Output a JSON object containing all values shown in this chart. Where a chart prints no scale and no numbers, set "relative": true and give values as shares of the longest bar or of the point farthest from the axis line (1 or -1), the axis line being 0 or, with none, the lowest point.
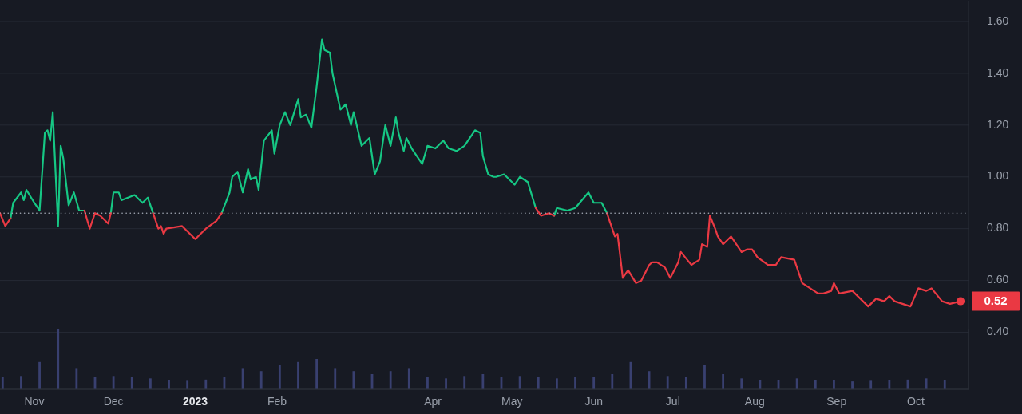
{
  "chart_data": [
    {
      "type": "line",
      "x": [
        "2022-10-19",
        "2022-10-21",
        "2022-10-23",
        "2022-10-24",
        "2022-10-27",
        "2022-10-28",
        "2022-10-29",
        "2022-11-01",
        "2022-11-03",
        "2022-11-05",
        "2022-11-06",
        "2022-11-07",
        "2022-11-08",
        "2022-11-10",
        "2022-11-11",
        "2022-11-12",
        "2022-11-14",
        "2022-11-16",
        "2022-11-18",
        "2022-11-20",
        "2022-11-22",
        "2022-11-24",
        "2022-11-26",
        "2022-11-29",
        "2022-11-30",
        "2022-12-01",
        "2022-12-03",
        "2022-12-04",
        "2022-12-09",
        "2022-12-12",
        "2022-12-14",
        "2022-12-16",
        "2022-12-18",
        "2022-12-19",
        "2022-12-20",
        "2022-12-21",
        "2022-12-27",
        "2023-01-01",
        "2023-01-05",
        "2023-01-09",
        "2023-01-11",
        "2023-01-14",
        "2023-01-15",
        "2023-01-17",
        "2023-01-19",
        "2023-01-21",
        "2023-01-22",
        "2023-01-24",
        "2023-01-25",
        "2023-01-27",
        "2023-01-30",
        "2023-01-31",
        "2023-02-02",
        "2023-02-04",
        "2023-02-06",
        "2023-02-09",
        "2023-02-10",
        "2023-02-12",
        "2023-02-14",
        "2023-02-16",
        "2023-02-18",
        "2023-02-19",
        "2023-02-21",
        "2023-02-22",
        "2023-02-25",
        "2023-02-27",
        "2023-03-01",
        "2023-03-02",
        "2023-03-05",
        "2023-03-08",
        "2023-03-10",
        "2023-03-12",
        "2023-03-14",
        "2023-03-16",
        "2023-03-18",
        "2023-03-19",
        "2023-03-21",
        "2023-03-22",
        "2023-03-24",
        "2023-03-26",
        "2023-03-28",
        "2023-03-30",
        "2023-04-02",
        "2023-04-05",
        "2023-04-07",
        "2023-04-10",
        "2023-04-13",
        "2023-04-17",
        "2023-04-19",
        "2023-04-20",
        "2023-04-22",
        "2023-04-24",
        "2023-04-25",
        "2023-04-28",
        "2023-05-02",
        "2023-05-04",
        "2023-05-07",
        "2023-05-10",
        "2023-05-12",
        "2023-05-15",
        "2023-05-17",
        "2023-05-18",
        "2023-05-22",
        "2023-05-25",
        "2023-05-30",
        "2023-06-01",
        "2023-06-04",
        "2023-06-06",
        "2023-06-09",
        "2023-06-10",
        "2023-06-12",
        "2023-06-14",
        "2023-06-17",
        "2023-06-19",
        "2023-06-22",
        "2023-06-23",
        "2023-06-25",
        "2023-06-28",
        "2023-06-30",
        "2023-07-03",
        "2023-07-04",
        "2023-07-08",
        "2023-07-11",
        "2023-07-12",
        "2023-07-14",
        "2023-07-15",
        "2023-07-17",
        "2023-07-18",
        "2023-07-20",
        "2023-07-23",
        "2023-07-25",
        "2023-07-27",
        "2023-07-29",
        "2023-07-31",
        "2023-08-02",
        "2023-08-06",
        "2023-08-09",
        "2023-08-11",
        "2023-08-16",
        "2023-08-19",
        "2023-08-22",
        "2023-08-25",
        "2023-08-27",
        "2023-08-30",
        "2023-08-31",
        "2023-09-02",
        "2023-09-07",
        "2023-09-13",
        "2023-09-16",
        "2023-09-19",
        "2023-09-21",
        "2023-09-23",
        "2023-09-29",
        "2023-10-02",
        "2023-10-05",
        "2023-10-07",
        "2023-10-11",
        "2023-10-14",
        "2023-10-18"
      ],
      "series": [
        {
          "color": "#16c784",
          "values": [
            null,
            null,
            0.84,
            0.9,
            0.94,
            0.91,
            0.95,
            0.9,
            0.87,
            1.17,
            1.18,
            1.14,
            1.25,
            0.81,
            1.12,
            1.07,
            0.89,
            0.94,
            0.87,
            0.87,
            null,
            null,
            null,
            null,
            0.86,
            0.94,
            0.94,
            0.91,
            0.93,
            0.9,
            0.92,
            0.86,
            null,
            null,
            null,
            null,
            null,
            null,
            null,
            null,
            0.86,
            0.94,
            1.0,
            1.02,
            0.94,
            1.03,
            0.99,
            1.0,
            0.95,
            1.14,
            1.18,
            1.09,
            1.2,
            1.25,
            1.2,
            1.3,
            1.23,
            1.24,
            1.19,
            1.35,
            1.53,
            1.49,
            1.48,
            1.4,
            1.26,
            1.28,
            1.2,
            1.25,
            1.12,
            1.15,
            1.01,
            1.06,
            1.2,
            1.12,
            1.23,
            1.17,
            1.1,
            1.15,
            1.11,
            1.08,
            1.05,
            1.12,
            1.11,
            1.14,
            1.11,
            1.1,
            1.12,
            1.18,
            1.17,
            1.08,
            1.01,
            1.0,
            1.0,
            1.01,
            0.97,
            1.0,
            0.98,
            0.88,
            null,
            null,
            0.85,
            0.88,
            0.87,
            0.88,
            0.94,
            0.9,
            0.9,
            0.86,
            null,
            null,
            null,
            null,
            null,
            null,
            null,
            null,
            null,
            null,
            null,
            null,
            null,
            null,
            null,
            null,
            null,
            null,
            null,
            null,
            null,
            null,
            null,
            null,
            null,
            null,
            null,
            null,
            null,
            null,
            null,
            null,
            null,
            null,
            null,
            null,
            null,
            null,
            null,
            null,
            null,
            null,
            null,
            null,
            null,
            null,
            null,
            null,
            null,
            null,
            null
          ]
        },
        {
          "color": "#ea3943",
          "values": [
            0.86,
            0.81,
            0.84,
            null,
            null,
            null,
            null,
            null,
            null,
            null,
            null,
            null,
            null,
            null,
            null,
            null,
            null,
            null,
            null,
            0.87,
            0.8,
            0.86,
            0.85,
            0.82,
            0.86,
            null,
            null,
            null,
            null,
            null,
            null,
            0.86,
            0.8,
            0.81,
            0.78,
            0.8,
            0.81,
            0.76,
            0.8,
            0.83,
            0.86,
            null,
            null,
            null,
            null,
            null,
            null,
            null,
            null,
            null,
            null,
            null,
            null,
            null,
            null,
            null,
            null,
            null,
            null,
            null,
            null,
            null,
            null,
            null,
            null,
            null,
            null,
            null,
            null,
            null,
            null,
            null,
            null,
            null,
            null,
            null,
            null,
            null,
            null,
            null,
            null,
            null,
            null,
            null,
            null,
            null,
            null,
            null,
            null,
            null,
            null,
            null,
            null,
            null,
            null,
            null,
            null,
            0.88,
            0.85,
            0.86,
            0.85,
            null,
            null,
            null,
            null,
            null,
            null,
            0.86,
            0.77,
            0.78,
            0.61,
            0.64,
            0.59,
            0.6,
            0.66,
            0.67,
            0.67,
            0.65,
            0.61,
            0.67,
            0.71,
            0.66,
            0.68,
            0.74,
            0.73,
            0.85,
            0.8,
            0.77,
            0.74,
            0.77,
            0.74,
            0.71,
            0.72,
            0.72,
            0.69,
            0.66,
            0.66,
            0.69,
            0.68,
            0.59,
            0.57,
            0.55,
            0.55,
            0.56,
            0.59,
            0.55,
            0.56,
            0.5,
            0.53,
            0.52,
            0.54,
            0.52,
            0.5,
            0.57,
            0.56,
            0.57,
            0.52,
            0.51,
            0.52
          ]
        }
      ],
      "xlim": [
        "2022-10-19",
        "2023-10-21"
      ],
      "xticks": [
        {
          "value": "2022-11-01",
          "label": "Nov"
        },
        {
          "value": "2022-12-01",
          "label": "Dec"
        },
        {
          "value": "2023-01-01",
          "label": "2023"
        },
        {
          "value": "2023-02-01",
          "label": "Feb"
        },
        {
          "value": "2023-04-01",
          "label": "Apr"
        },
        {
          "value": "2023-05-01",
          "label": "May"
        },
        {
          "value": "2023-06-01",
          "label": "Jun"
        },
        {
          "value": "2023-07-01",
          "label": "Jul"
        },
        {
          "value": "2023-08-01",
          "label": "Aug"
        },
        {
          "value": "2023-09-01",
          "label": "Sep"
        },
        {
          "value": "2023-10-01",
          "label": "Oct"
        }
      ],
      "ylim": [
        0.18,
        1.68
      ],
      "yticks": [
        {
          "value": 0.4,
          "label": "0.40"
        },
        {
          "value": 0.6,
          "label": "0.60"
        },
        {
          "value": 0.8,
          "label": "0.80"
        },
        {
          "value": 1.0,
          "label": "1.00"
        },
        {
          "value": 1.2,
          "label": "1.20"
        },
        {
          "value": 1.4,
          "label": "1.40"
        },
        {
          "value": 1.6,
          "label": "1.60"
        }
      ],
      "grid": "y",
      "ref_lines": [
        {
          "axis": "y",
          "value": 0.86,
          "line_style": "dotted",
          "color": "#a0a6b2"
        }
      ],
      "annotations": [
        {
          "text": "0.52",
          "x": "2023-10-18",
          "y": 0.52
        }
      ]
    },
    {
      "type": "bar",
      "relative": true,
      "color": "#394070",
      "x": [
        "2022-10-20",
        "2022-10-27",
        "2022-11-03",
        "2022-11-10",
        "2022-11-17",
        "2022-11-24",
        "2022-12-01",
        "2022-12-08",
        "2022-12-15",
        "2022-12-22",
        "2022-12-29",
        "2023-01-05",
        "2023-01-12",
        "2023-01-19",
        "2023-01-26",
        "2023-02-02",
        "2023-02-09",
        "2023-02-16",
        "2023-02-23",
        "2023-03-02",
        "2023-03-09",
        "2023-03-16",
        "2023-03-23",
        "2023-03-30",
        "2023-04-06",
        "2023-04-13",
        "2023-04-20",
        "2023-04-27",
        "2023-05-04",
        "2023-05-11",
        "2023-05-18",
        "2023-05-25",
        "2023-06-01",
        "2023-06-08",
        "2023-06-15",
        "2023-06-22",
        "2023-06-29",
        "2023-07-06",
        "2023-07-13",
        "2023-07-20",
        "2023-07-27",
        "2023-08-03",
        "2023-08-10",
        "2023-08-17",
        "2023-08-24",
        "2023-08-31",
        "2023-09-07",
        "2023-09-14",
        "2023-09-21",
        "2023-09-28",
        "2023-10-05",
        "2023-10-12"
      ],
      "values": [
        0.2,
        0.22,
        0.45,
        1,
        0.35,
        0.2,
        0.22,
        0.2,
        0.18,
        0.15,
        0.14,
        0.16,
        0.2,
        0.35,
        0.3,
        0.4,
        0.45,
        0.5,
        0.35,
        0.3,
        0.25,
        0.3,
        0.35,
        0.2,
        0.18,
        0.22,
        0.25,
        0.2,
        0.22,
        0.2,
        0.18,
        0.2,
        0.2,
        0.25,
        0.45,
        0.3,
        0.22,
        0.2,
        0.4,
        0.25,
        0.18,
        0.15,
        0.15,
        0.18,
        0.15,
        0.15,
        0.13,
        0.14,
        0.15,
        0.16,
        0.18,
        0.15
      ],
      "xlim": [
        "2022-10-19",
        "2023-10-21"
      ]
    }
  ]
}
